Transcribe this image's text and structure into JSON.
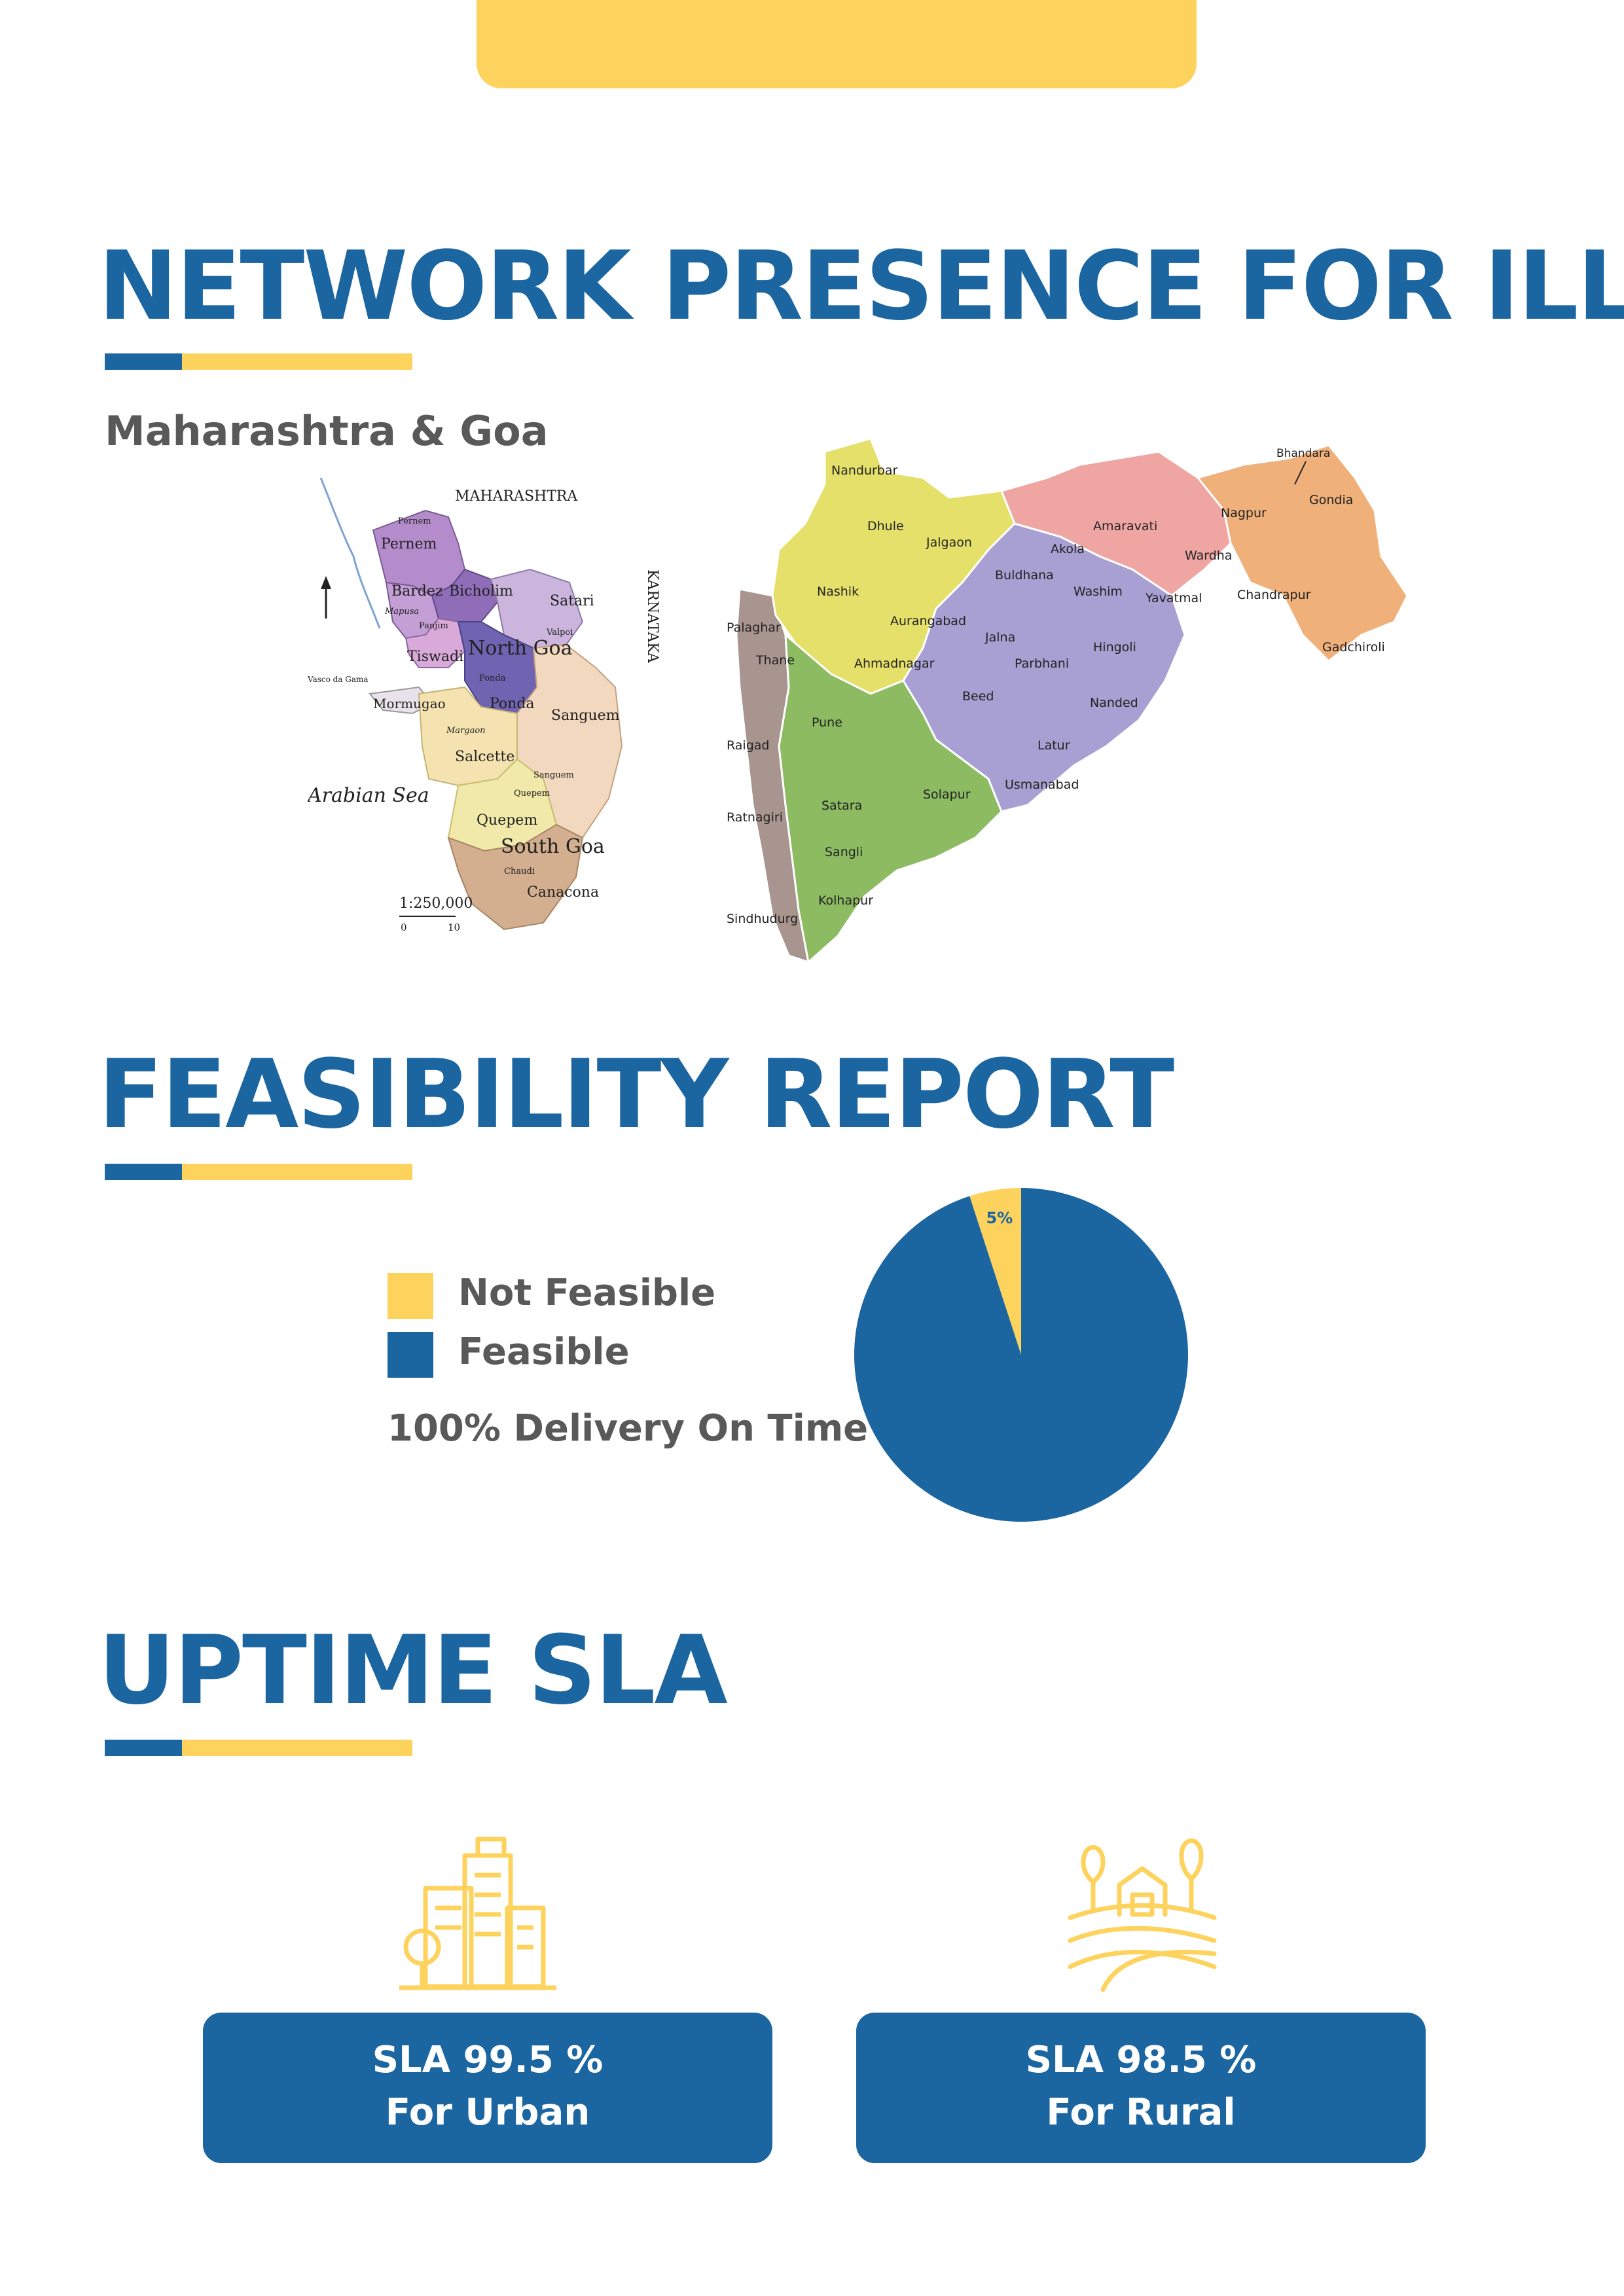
{
  "sections": {
    "network": {
      "title": "NETWORK PRESENCE FOR ILL",
      "subtitle": "Maharashtra & Goa"
    },
    "feasibility": {
      "title": "FEASIBILITY REPORT",
      "legend": [
        {
          "label": "Not Feasible",
          "color": "#FDD35E"
        },
        {
          "label": "Feasible",
          "color": "#1B65A1"
        }
      ],
      "delivery_text": "100% Delivery On Time"
    },
    "uptime": {
      "title": "UPTIME SLA",
      "cards": [
        {
          "line1": "SLA 99.5 %",
          "line2": "For Urban",
          "icon": "city-buildings-icon"
        },
        {
          "line1": "SLA 98.5 %",
          "line2": "For Rural",
          "icon": "farm-house-icon"
        }
      ]
    }
  },
  "goa_map": {
    "labels": {
      "state": "MAHARASHTRA",
      "neighbor": "KARNATAKA",
      "sea": "Arabian Sea",
      "scale": "1:250,000",
      "scale_start": "0",
      "scale_end": "10",
      "north": "North Goa",
      "south": "South Goa",
      "pernem": "Pernem",
      "bardez": "Bardez",
      "bicholim": "Bicholim",
      "mapusa": "Mapusa",
      "panjim": "Panjim",
      "tiswadi": "Tiswadi",
      "satari": "Satari",
      "valpoi": "Valpoi",
      "vasco": "Vasco da Gama",
      "mormugao": "Mormugao",
      "ponda_town": "Ponda",
      "ponda": "Ponda",
      "sanguem": "Sanguem",
      "margao": "Margaon",
      "salcette": "Salcette",
      "sanguem_town": "Sanguem",
      "quepem_town": "Quepem",
      "quepem": "Quepem",
      "chaudi": "Chaudi",
      "canacona": "Canacona"
    }
  },
  "maharashtra_map": {
    "districts": {
      "nandurbar": "Nandurbar",
      "dhule": "Dhule",
      "jalgaon": "Jalgaon",
      "nashik": "Nashik",
      "palaghar": "Palaghar",
      "thane": "Thane",
      "aurangabad": "Aurangabad",
      "ahmadnagar": "Ahmadnagar",
      "jalna": "Jalna",
      "buldhana": "Buldhana",
      "akola": "Akola",
      "amaravati": "Amaravati",
      "washim": "Washim",
      "yavatmal": "Yavatmal",
      "hingoli": "Hingoli",
      "parbhani": "Parbhani",
      "beed": "Beed",
      "nanded": "Nanded",
      "latur": "Latur",
      "osmanabad": "Usmanabad",
      "nagpur": "Nagpur",
      "bhandara": "Bhandara",
      "gondia": "Gondia",
      "wardha": "Wardha",
      "chandrapur": "Chandrapur",
      "gadchiroli": "Gadchiroli",
      "raigad": "Raigad",
      "pune": "Pune",
      "satara": "Satara",
      "solapur": "Solapur",
      "ratnagiri": "Ratnagiri",
      "sangli": "Sangli",
      "kolhapur": "Kolhapur",
      "sindhudurg": "Sindhudurg"
    }
  },
  "chart_data": {
    "type": "pie",
    "slices": [
      {
        "label": "Not Feasible",
        "value": 5,
        "color": "#FDD35E",
        "data_label": "5%"
      },
      {
        "label": "Feasible",
        "value": 95,
        "color": "#1B65A1",
        "data_label": ""
      }
    ],
    "title": "",
    "legend_position": "left"
  }
}
